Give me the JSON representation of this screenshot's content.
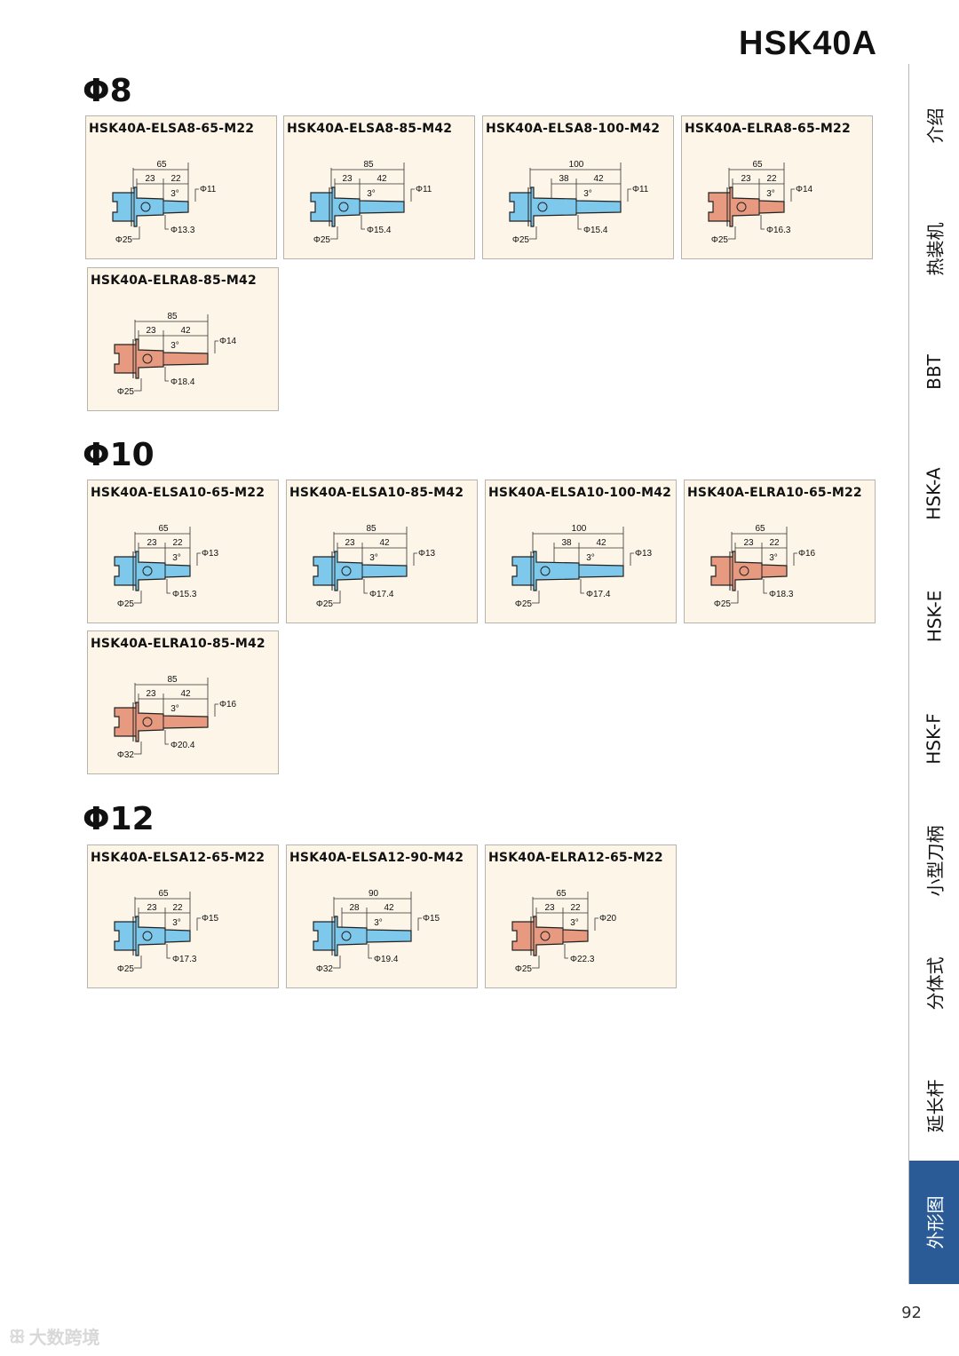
{
  "page_title": "HSK40A",
  "colors": {
    "blue": "#7ec8ec",
    "salmon": "#e79a7f",
    "card_bg": "#fcf5e8",
    "tab_active": "#2a5b96"
  },
  "sections": [
    {
      "heading": "Φ8",
      "cards": [
        {
          "model": "HSK40A-ELSA8-65-M22",
          "color": "blue",
          "total": "65",
          "seg1": "23",
          "seg2": "22",
          "angle": "3°",
          "tip_d": "Φ11",
          "mid_d": "Φ13.3",
          "base_d": "Φ25"
        },
        {
          "model": "HSK40A-ELSA8-85-M42",
          "color": "blue",
          "total": "85",
          "seg1": "23",
          "seg2": "42",
          "angle": "3°",
          "tip_d": "Φ11",
          "mid_d": "Φ15.4",
          "base_d": "Φ25"
        },
        {
          "model": "HSK40A-ELSA8-100-M42",
          "color": "blue",
          "total": "100",
          "seg1": "38",
          "seg2": "42",
          "angle": "3°",
          "tip_d": "Φ11",
          "mid_d": "Φ15.4",
          "base_d": "Φ25"
        },
        {
          "model": "HSK40A-ELRA8-65-M22",
          "color": "salmon",
          "total": "65",
          "seg1": "23",
          "seg2": "22",
          "angle": "3°",
          "tip_d": "Φ14",
          "mid_d": "Φ16.3",
          "base_d": "Φ25"
        },
        {
          "model": "HSK40A-ELRA8-85-M42",
          "color": "salmon",
          "total": "85",
          "seg1": "23",
          "seg2": "42",
          "angle": "3°",
          "tip_d": "Φ14",
          "mid_d": "Φ18.4",
          "base_d": "Φ25"
        }
      ]
    },
    {
      "heading": "Φ10",
      "cards": [
        {
          "model": "HSK40A-ELSA10-65-M22",
          "color": "blue",
          "total": "65",
          "seg1": "23",
          "seg2": "22",
          "angle": "3°",
          "tip_d": "Φ13",
          "mid_d": "Φ15.3",
          "base_d": "Φ25"
        },
        {
          "model": "HSK40A-ELSA10-85-M42",
          "color": "blue",
          "total": "85",
          "seg1": "23",
          "seg2": "42",
          "angle": "3°",
          "tip_d": "Φ13",
          "mid_d": "Φ17.4",
          "base_d": "Φ25"
        },
        {
          "model": "HSK40A-ELSA10-100-M42",
          "color": "blue",
          "total": "100",
          "seg1": "38",
          "seg2": "42",
          "angle": "3°",
          "tip_d": "Φ13",
          "mid_d": "Φ17.4",
          "base_d": "Φ25"
        },
        {
          "model": "HSK40A-ELRA10-65-M22",
          "color": "salmon",
          "total": "65",
          "seg1": "23",
          "seg2": "22",
          "angle": "3°",
          "tip_d": "Φ16",
          "mid_d": "Φ18.3",
          "base_d": "Φ25"
        },
        {
          "model": "HSK40A-ELRA10-85-M42",
          "color": "salmon",
          "total": "85",
          "seg1": "23",
          "seg2": "42",
          "angle": "3°",
          "tip_d": "Φ16",
          "mid_d": "Φ20.4",
          "base_d": "Φ32"
        }
      ]
    },
    {
      "heading": "Φ12",
      "cards": [
        {
          "model": "HSK40A-ELSA12-65-M22",
          "color": "blue",
          "total": "65",
          "seg1": "23",
          "seg2": "22",
          "angle": "3°",
          "tip_d": "Φ15",
          "mid_d": "Φ17.3",
          "base_d": "Φ25"
        },
        {
          "model": "HSK40A-ELSA12-90-M42",
          "color": "blue",
          "total": "90",
          "seg1": "28",
          "seg2": "42",
          "angle": "3°",
          "tip_d": "Φ15",
          "mid_d": "Φ19.4",
          "base_d": "Φ32"
        },
        {
          "model": "HSK40A-ELRA12-65-M22",
          "color": "salmon",
          "total": "65",
          "seg1": "23",
          "seg2": "22",
          "angle": "3°",
          "tip_d": "Φ20",
          "mid_d": "Φ22.3",
          "base_d": "Φ25"
        }
      ]
    }
  ],
  "side_tabs": [
    {
      "label": "介绍",
      "active": false
    },
    {
      "label": "热装机",
      "active": false
    },
    {
      "label": "BBT",
      "active": false
    },
    {
      "label": "HSK-A",
      "active": false
    },
    {
      "label": "HSK-E",
      "active": false
    },
    {
      "label": "HSK-F",
      "active": false
    },
    {
      "label": "小型刀柄",
      "active": false
    },
    {
      "label": "分体式",
      "active": false
    },
    {
      "label": "延长杆",
      "active": false
    },
    {
      "label": "外形图",
      "active": true
    }
  ],
  "page_number": "92",
  "watermark": "大数跨境"
}
